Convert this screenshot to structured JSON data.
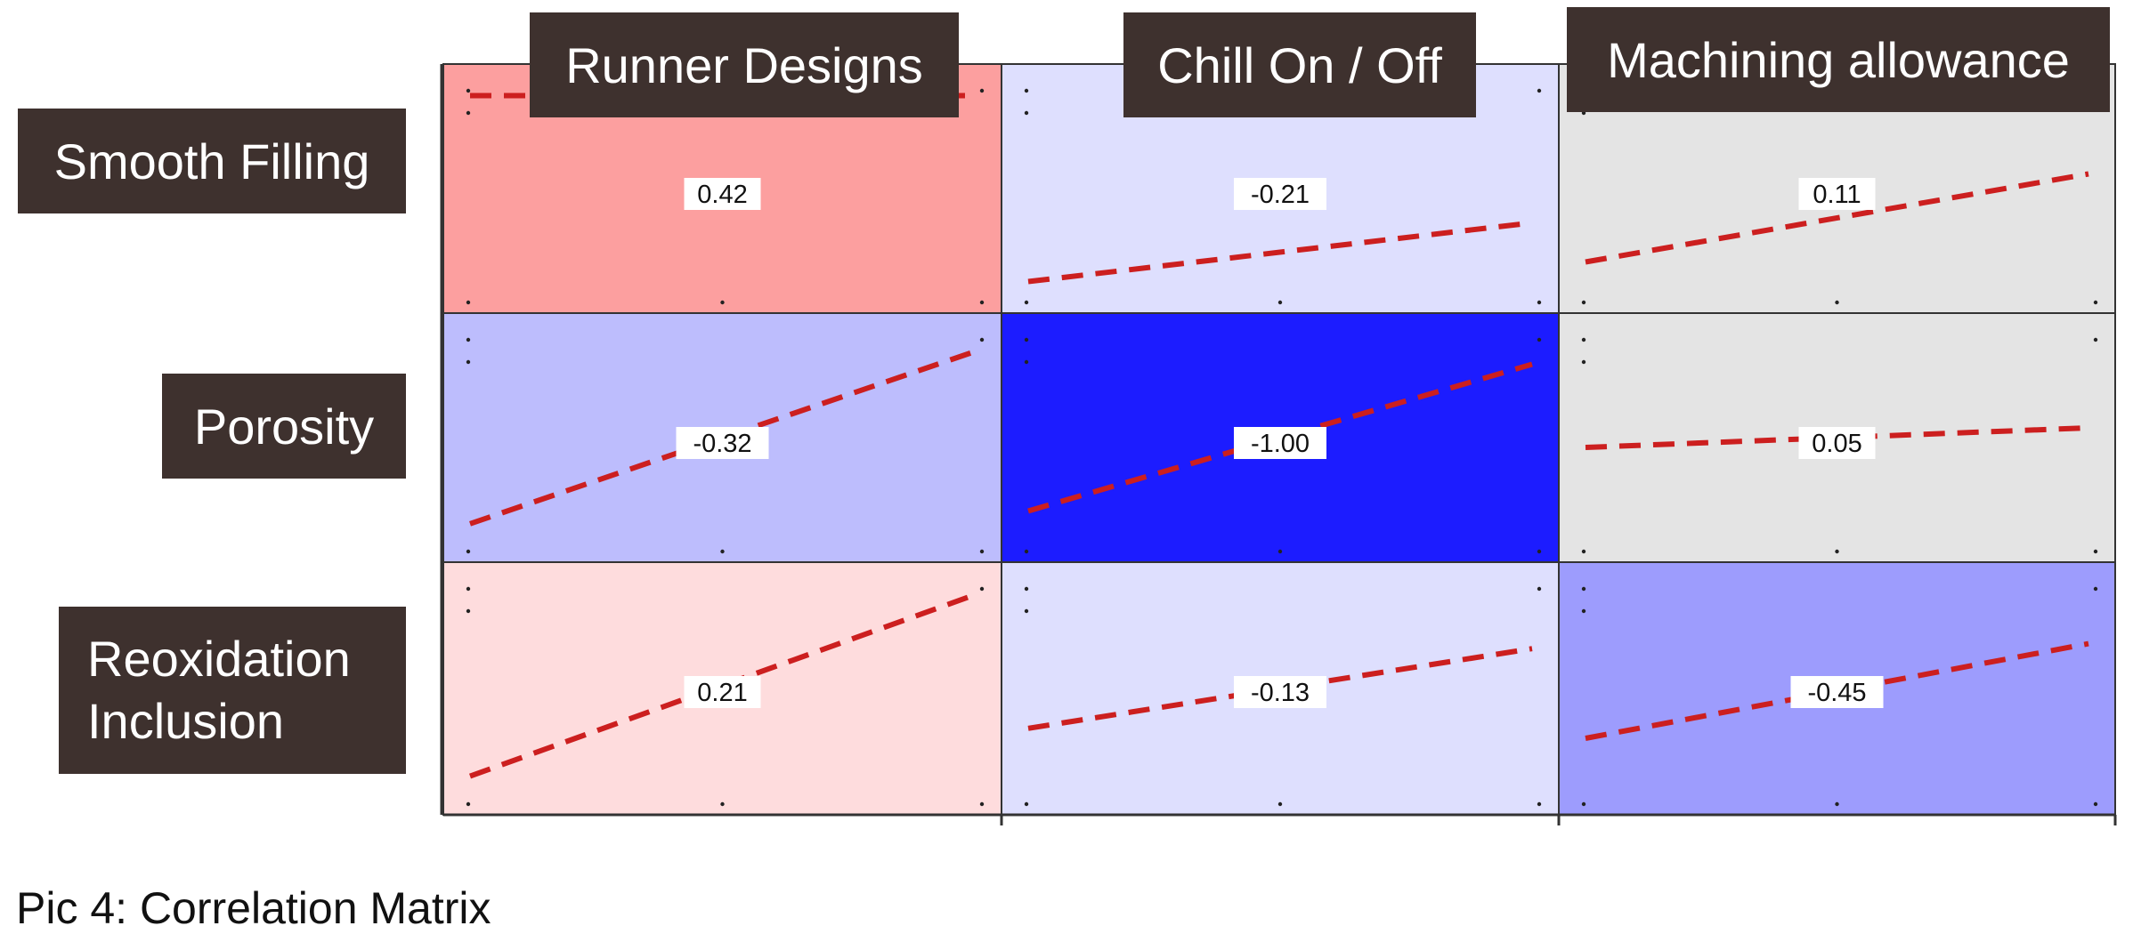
{
  "caption": "Pic 4: Correlation Matrix",
  "colors": {
    "header_bg": "#3e312e",
    "header_text": "#ffffff",
    "trend_line": "#cc1f1f",
    "positive": "#f47a7a",
    "negative": "#1a1aff",
    "neutral": "#e4e4e4"
  },
  "chart_data": {
    "type": "heatmap",
    "title": "",
    "columns": [
      "Runner Designs",
      "Chill On / Off",
      "Machining allowance"
    ],
    "rows": [
      "Smooth Filling",
      "Porosity",
      "Reoxidation\nInclusion"
    ],
    "cell_labels": [
      [
        "0.42",
        "-0.21",
        "0.11"
      ],
      [
        "-0.32",
        "-1.00",
        "0.05"
      ],
      [
        "0.21",
        "-0.13",
        "-0.45"
      ]
    ],
    "values": [
      [
        0.42,
        -0.21,
        0.11
      ],
      [
        -0.32,
        -1.0,
        0.05
      ],
      [
        0.21,
        -0.13,
        -0.45
      ]
    ],
    "cell_colors": [
      [
        "#fc9f9f",
        "#dedffe",
        "#e4e4e4"
      ],
      [
        "#bdbdfd",
        "#1c1cff",
        "#e4e4e4"
      ],
      [
        "#fedcdd",
        "#dedffe",
        "#9d9cfd"
      ]
    ],
    "trend_lines": [
      [
        [
          -1,
          -0.85
        ],
        [
          -1,
          -0.35
        ],
        [
          -1,
          0.2
        ]
      ],
      [
        [
          -0.58,
          0.5
        ],
        [
          -1,
          1
        ],
        [
          0,
          0
        ]
      ],
      [
        [
          -0.75,
          -0.08
        ],
        [
          0.05,
          0.03
        ],
        [
          -0.58,
          0.68
        ]
      ]
    ],
    "trend_line_ends": [
      [
        [
          0.95,
          0.95
        ],
        [
          -0.95,
          -0.35
        ],
        [
          -0.75,
          0.15
        ]
      ],
      [
        [
          -0.88,
          0.88
        ],
        [
          -0.75,
          0.75
        ],
        [
          -0.1,
          0.1
        ]
      ],
      [
        [
          -0.88,
          0.94
        ],
        [
          -0.4,
          0.4
        ],
        [
          -0.5,
          0.45
        ]
      ]
    ],
    "grid": true
  }
}
